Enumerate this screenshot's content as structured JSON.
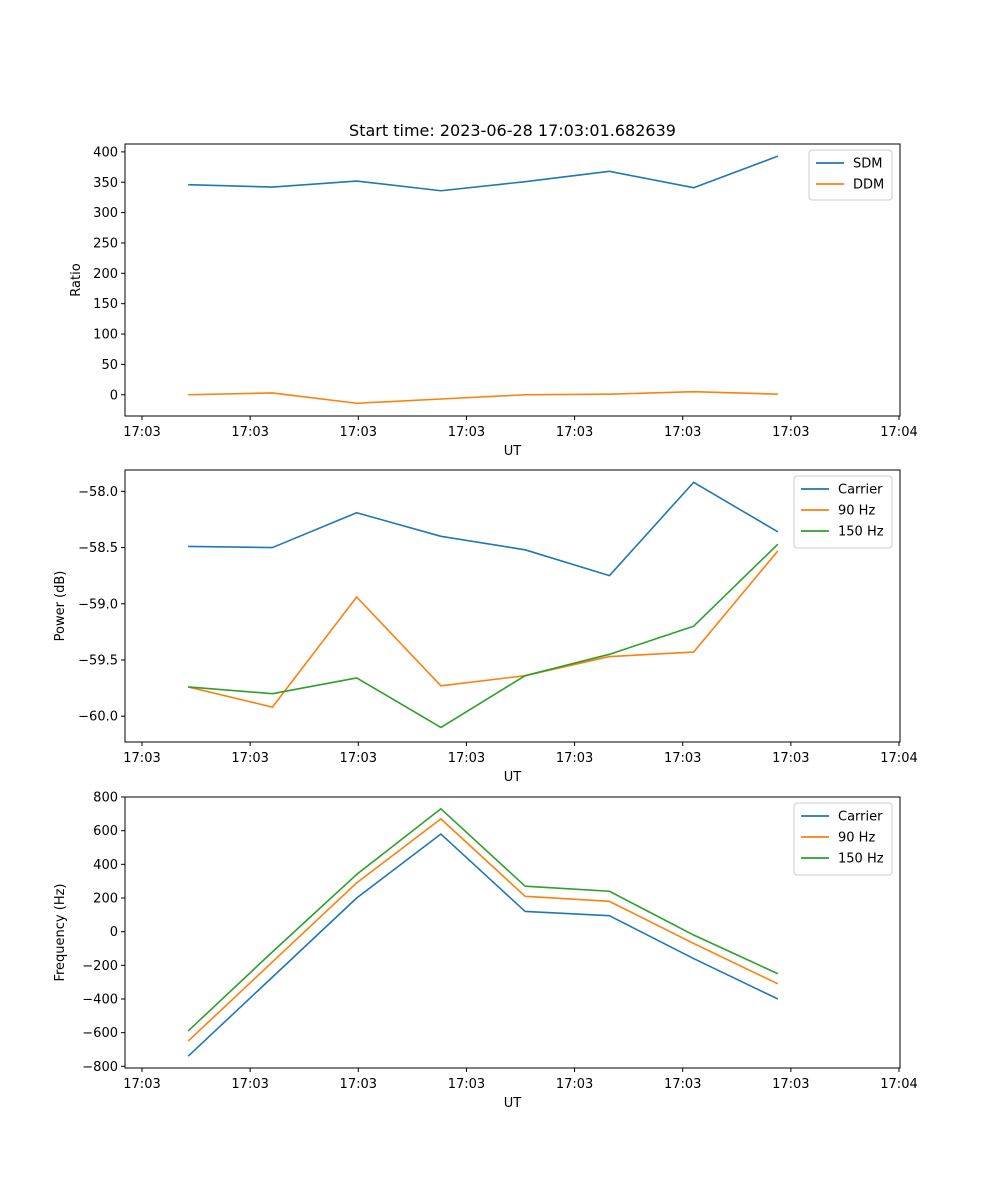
{
  "figure_title": "Start time: 2023-06-28 17:03:01.682639",
  "chart_data": [
    {
      "type": "line",
      "xlabel": "UT",
      "ylabel": "Ratio",
      "x_tick_labels": [
        "17:03",
        "17:03",
        "17:03",
        "17:03",
        "17:03",
        "17:03",
        "17:03"
      ],
      "x_edge_tick_label": "17:04",
      "yticks": [
        0,
        50,
        100,
        150,
        200,
        250,
        300,
        350,
        400
      ],
      "ytick_labels": [
        "0",
        "50",
        "100",
        "150",
        "200",
        "250",
        "300",
        "350",
        "400"
      ],
      "ylim": [
        -35,
        413
      ],
      "legend_position": "top-right",
      "series": [
        {
          "name": "SDM",
          "color": "#1f77b4",
          "values": [
            346,
            342,
            352,
            336,
            351,
            368,
            341,
            393
          ]
        },
        {
          "name": "DDM",
          "color": "#ff7f0e",
          "values": [
            0,
            3,
            -14,
            -7,
            0,
            1,
            5,
            1
          ]
        }
      ]
    },
    {
      "type": "line",
      "xlabel": "UT",
      "ylabel": "Power (dB)",
      "x_tick_labels": [
        "17:03",
        "17:03",
        "17:03",
        "17:03",
        "17:03",
        "17:03",
        "17:03"
      ],
      "x_edge_tick_label": "17:04",
      "yticks": [
        -60.0,
        -59.5,
        -59.0,
        -58.5,
        -58.0
      ],
      "ytick_labels": [
        "−60.0",
        "−59.5",
        "−59.0",
        "−58.5",
        "−58.0"
      ],
      "ylim": [
        -60.23,
        -57.81
      ],
      "legend_position": "top-right",
      "series": [
        {
          "name": "Carrier",
          "color": "#1f77b4",
          "values": [
            -58.49,
            -58.5,
            -58.19,
            -58.4,
            -58.52,
            -58.75,
            -57.92,
            -58.36
          ]
        },
        {
          "name": "90 Hz",
          "color": "#ff7f0e",
          "values": [
            -59.74,
            -59.92,
            -58.94,
            -59.73,
            -59.64,
            -59.47,
            -59.43,
            -58.53
          ]
        },
        {
          "name": "150 Hz",
          "color": "#2ca02c",
          "values": [
            -59.74,
            -59.8,
            -59.66,
            -60.1,
            -59.64,
            -59.45,
            -59.2,
            -58.47
          ]
        }
      ]
    },
    {
      "type": "line",
      "xlabel": "UT",
      "ylabel": "Frequency (Hz)",
      "x_tick_labels": [
        "17:03",
        "17:03",
        "17:03",
        "17:03",
        "17:03",
        "17:03",
        "17:03"
      ],
      "x_edge_tick_label": "17:04",
      "yticks": [
        -800,
        -600,
        -400,
        -200,
        0,
        200,
        400,
        600,
        800
      ],
      "ytick_labels": [
        "−800",
        "−600",
        "−400",
        "−200",
        "0",
        "200",
        "400",
        "600",
        "800"
      ],
      "ylim": [
        -810,
        800
      ],
      "legend_position": "top-right",
      "series": [
        {
          "name": "Carrier",
          "color": "#1f77b4",
          "values": [
            -740,
            -270,
            200,
            580,
            120,
            95,
            -160,
            -400
          ]
        },
        {
          "name": "90 Hz",
          "color": "#ff7f0e",
          "values": [
            -650,
            -180,
            290,
            670,
            210,
            180,
            -70,
            -310
          ]
        },
        {
          "name": "150 Hz",
          "color": "#2ca02c",
          "values": [
            -590,
            -120,
            340,
            730,
            270,
            240,
            -20,
            -250
          ]
        }
      ]
    }
  ]
}
